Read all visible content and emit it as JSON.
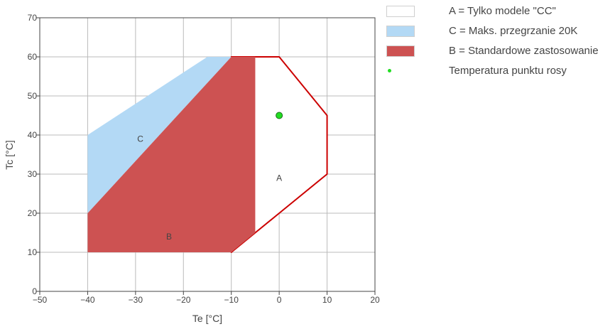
{
  "chart_data": {
    "type": "area",
    "xlabel": "Te [°C]",
    "ylabel": "Tc [°C]",
    "xlim": [
      -50,
      20
    ],
    "ylim": [
      0,
      70
    ],
    "xticks": [
      -50,
      -40,
      -30,
      -20,
      -10,
      0,
      10,
      20
    ],
    "yticks": [
      0,
      10,
      20,
      30,
      40,
      50,
      60,
      70
    ],
    "xtick_labels": [
      "−50",
      "−40",
      "−30",
      "−20",
      "−10",
      "0",
      "10",
      "20"
    ],
    "ytick_labels": [
      "0",
      "10",
      "20",
      "30",
      "40",
      "50",
      "60",
      "70"
    ],
    "grid": true,
    "legend_position": "right",
    "series": [
      {
        "id": "A",
        "name": "A = Tylko modele \"CC\"",
        "label": "A",
        "kind": "polygon-outline",
        "fill": "#ffffff",
        "stroke": "#cc0000",
        "x": [
          -10,
          0,
          10,
          10,
          0,
          -10,
          -10
        ],
        "y": [
          60,
          60,
          45,
          30,
          20,
          10,
          60
        ],
        "label_at": [
          0,
          29
        ]
      },
      {
        "id": "C",
        "name": "C = Maks. przegrzanie 20K",
        "label": "C",
        "kind": "polygon-fill",
        "fill": "#b3d9f5",
        "x": [
          -40,
          -15,
          -10,
          -40
        ],
        "y": [
          40,
          60,
          60,
          20
        ],
        "label_at": [
          -29,
          39
        ]
      },
      {
        "id": "B",
        "name": "B = Standardowe zastosowanie",
        "label": "B",
        "kind": "polygon-fill",
        "fill": "#cd5252",
        "x": [
          -40,
          -10,
          -5,
          -5,
          -10,
          -40
        ],
        "y": [
          20,
          60,
          60,
          15,
          10,
          10
        ],
        "label_at": [
          -23,
          14
        ]
      },
      {
        "id": "dew",
        "name": "Temperatura punktu rosy",
        "kind": "point",
        "color": "#22dd22",
        "x": [
          0
        ],
        "y": [
          45
        ]
      }
    ]
  },
  "legend": {
    "items": [
      {
        "label": "A = Tylko modele \"CC\"",
        "color": "#ffffff",
        "type": "box"
      },
      {
        "label": "C = Maks. przegrzanie 20K",
        "color": "#b3d9f5",
        "type": "box"
      },
      {
        "label": "B = Standardowe zastosowanie",
        "color": "#cd5252",
        "type": "box"
      },
      {
        "label": "Temperatura punktu rosy",
        "color": "#22dd22",
        "type": "dot"
      }
    ]
  }
}
